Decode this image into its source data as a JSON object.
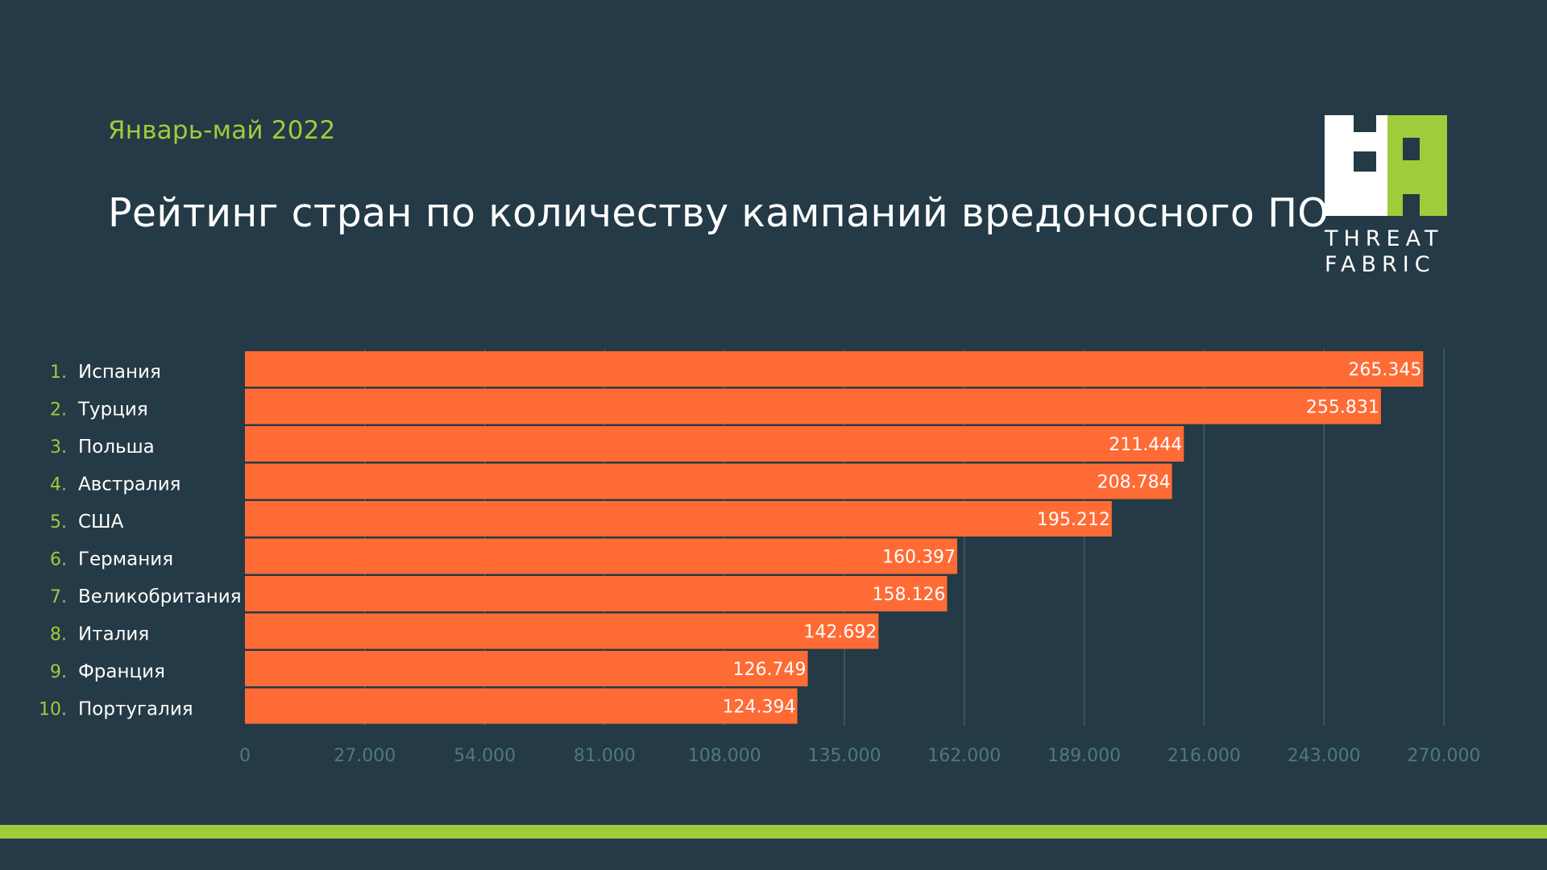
{
  "header": {
    "subtitle": "Январь-май 2022",
    "title": "Рейтинг стран по количеству кампаний вредоносного ПО"
  },
  "logo": {
    "line1": "THREAT",
    "line2": "FABRIC"
  },
  "colors": {
    "background": "#243a46",
    "accent_green": "#9fcc3a",
    "bar": "#ff6b35",
    "grid": "#3f5f66",
    "tick_text": "#4d7a7a"
  },
  "chart_data": {
    "type": "bar",
    "orientation": "horizontal",
    "title": "Рейтинг стран по количеству кампаний вредоносного ПО",
    "subtitle": "Январь-май 2022",
    "ranks": [
      "1.",
      "2.",
      "3.",
      "4.",
      "5.",
      "6.",
      "7.",
      "8.",
      "9.",
      "10."
    ],
    "categories": [
      "Испания",
      "Турция",
      "Польша",
      "Австралия",
      "США",
      "Германия",
      "Великобритания",
      "Италия",
      "Франция",
      "Португалия"
    ],
    "values": [
      265345,
      255831,
      211444,
      208784,
      195212,
      160397,
      158126,
      142692,
      126749,
      124394
    ],
    "value_labels": [
      "265.345",
      "255.831",
      "211.444",
      "208.784",
      "195.212",
      "160.397",
      "158.126",
      "142.692",
      "126.749",
      "124.394"
    ],
    "xlim": [
      0,
      270000
    ],
    "ticks": [
      0,
      27000,
      54000,
      81000,
      108000,
      135000,
      162000,
      189000,
      216000,
      243000,
      270000
    ],
    "tick_labels": [
      "0",
      "27.000",
      "54.000",
      "81.000",
      "108.000",
      "135.000",
      "162.000",
      "189.000",
      "216.000",
      "243.000",
      "270.000"
    ],
    "grid": true,
    "legend": "none"
  }
}
